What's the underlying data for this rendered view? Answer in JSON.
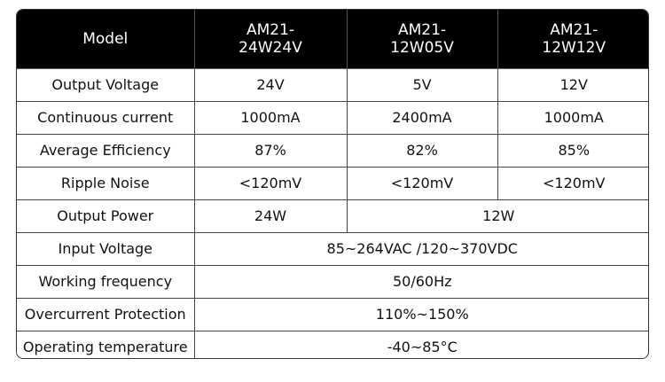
{
  "table": {
    "header": [
      "Model",
      "AM21-\n24W24V",
      "AM21-\n12W05V",
      "AM21-\n12W12V"
    ],
    "rows": [
      [
        "Output Voltage",
        "24V",
        "5V",
        "12V"
      ],
      [
        "Continuous current",
        "1000mA",
        "2400mA",
        "1000mA"
      ],
      [
        "Average Efficiency",
        "87%",
        "82%",
        "85%"
      ],
      [
        "Ripple Noise",
        "<120mV",
        "<120mV",
        "<120mV"
      ],
      [
        "Output Power",
        "24W",
        "12W"
      ],
      [
        "Input Voltage",
        "85~264VAC /120~370VDC"
      ],
      [
        "Working frequency",
        "50/60Hz"
      ],
      [
        "Overcurrent Protection",
        "110%~150%"
      ],
      [
        "Operating temperature",
        "-40~85°C"
      ]
    ]
  }
}
